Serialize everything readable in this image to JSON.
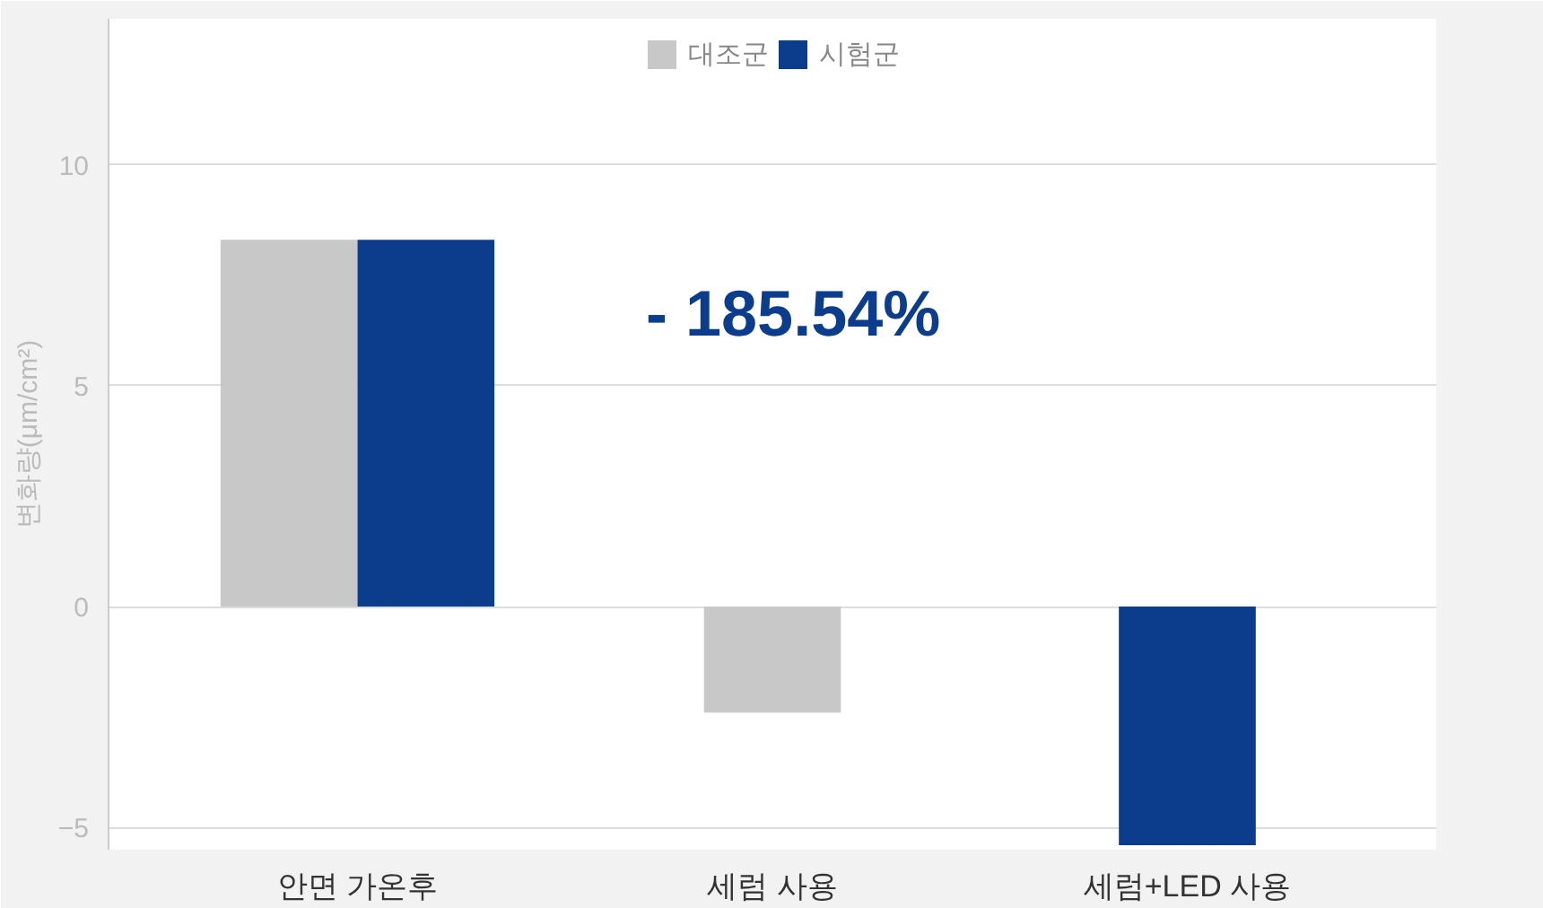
{
  "chart_data": {
    "type": "bar",
    "ylabel": "변화량(μm/cm²)",
    "categories": [
      "안면 가온후",
      "세럼 사용",
      "세럼+LED 사용"
    ],
    "series": [
      {
        "name": "대조군",
        "color": "#c8c8c8",
        "values": [
          8.3,
          -2.4,
          null
        ]
      },
      {
        "name": "시험군",
        "color": "#0b3d8c",
        "values": [
          8.3,
          null,
          -5.4
        ]
      }
    ],
    "ylim": [
      -5.5,
      13.3
    ],
    "yticks": [
      -5,
      0,
      5,
      10
    ],
    "grid": "y",
    "legend": "top",
    "annotations": [
      "- 185.54%"
    ]
  }
}
